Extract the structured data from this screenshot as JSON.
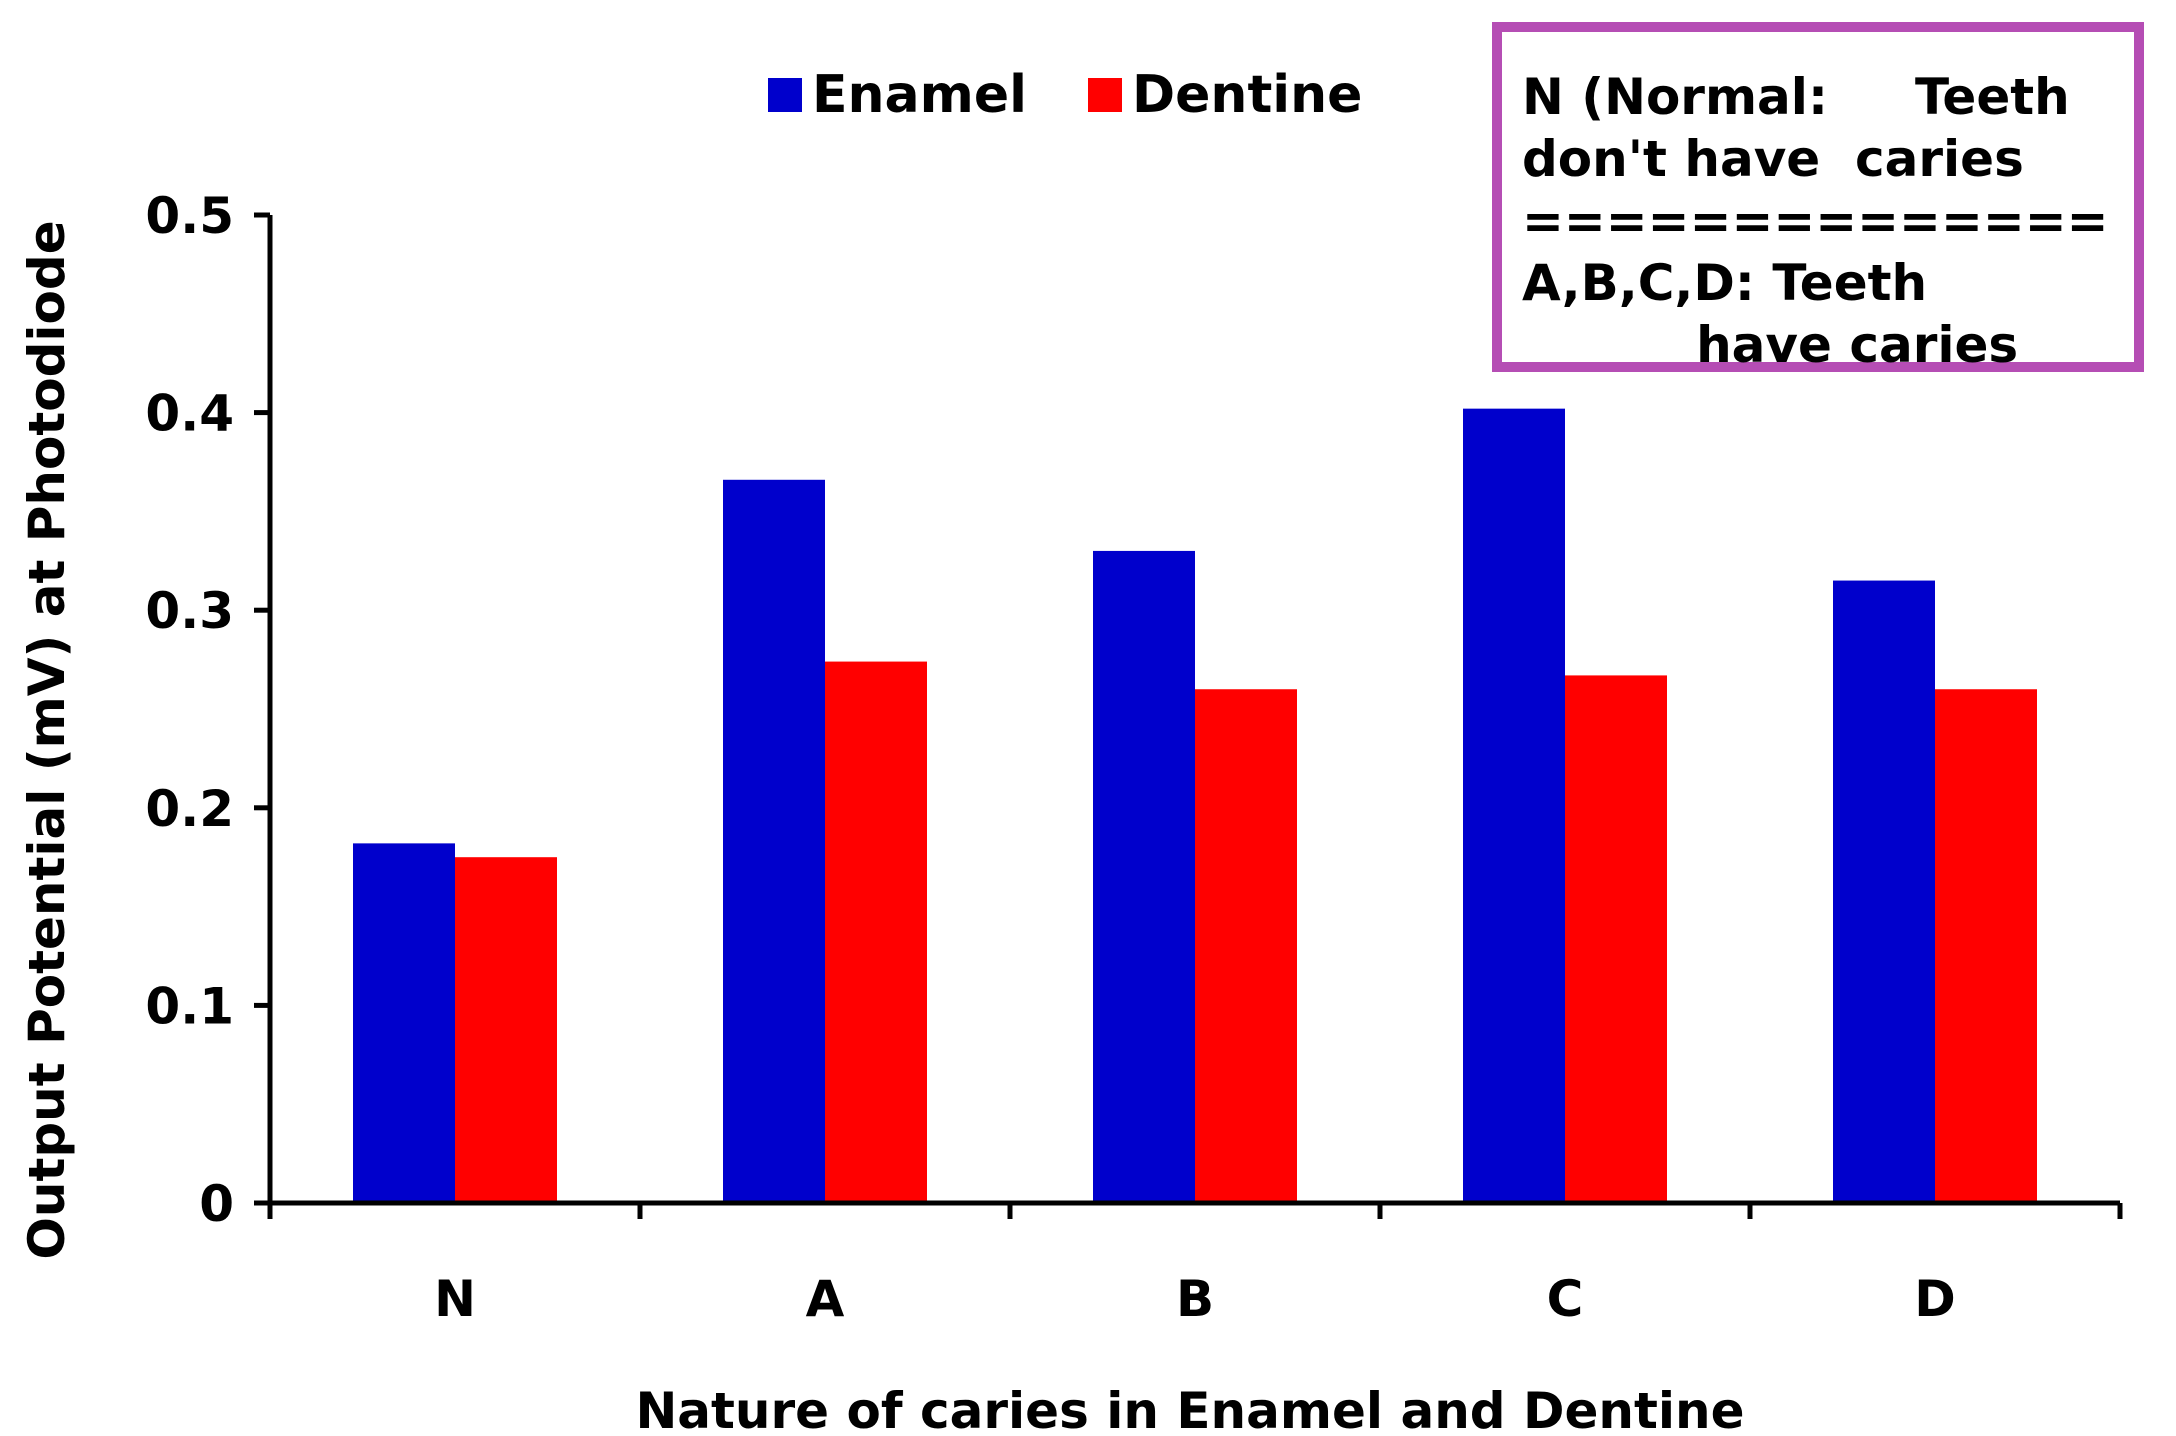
{
  "chart_data": {
    "type": "bar",
    "title": "",
    "xlabel": "Nature of caries in Enamel and Dentine",
    "ylabel": "Output Potential (mV) at Photodiode",
    "categories": [
      "N",
      "A",
      "B",
      "C",
      "D"
    ],
    "series": [
      {
        "name": "Enamel",
        "color": "#0000cc",
        "values": [
          0.182,
          0.366,
          0.33,
          0.402,
          0.315
        ]
      },
      {
        "name": "Dentine",
        "color": "#ff0000",
        "values": [
          0.175,
          0.274,
          0.26,
          0.267,
          0.26
        ]
      }
    ],
    "ylim": [
      0,
      0.5
    ],
    "yticks": [
      "0",
      "0.1",
      "0.2",
      "0.3",
      "0.4",
      "0.5"
    ],
    "grid": false,
    "legend_position": "top-center"
  },
  "note": {
    "lines": [
      "N (Normal:     Teeth",
      "don't have  caries",
      "==============",
      "A,B,C,D: Teeth",
      "          have caries"
    ],
    "border_color": "#b54db4"
  }
}
